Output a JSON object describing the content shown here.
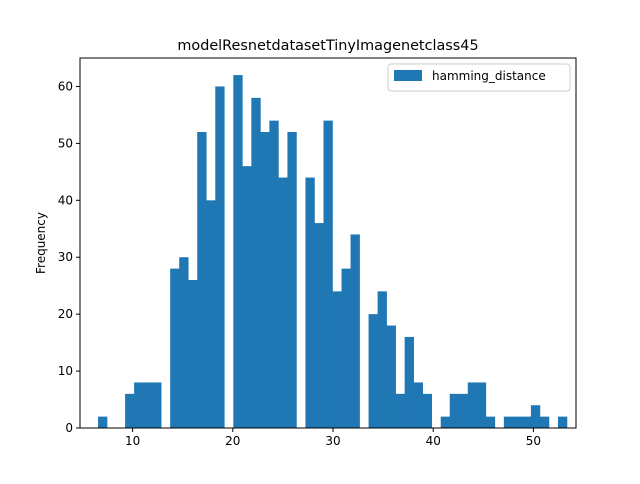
{
  "chart_data": {
    "type": "bar",
    "title": "modelResnetdatasetTinyImagenetclass45",
    "xlabel": "",
    "ylabel": "Frequency",
    "xlim": [
      4.75,
      54.25
    ],
    "ylim": [
      0,
      65
    ],
    "xticks": [
      10,
      20,
      30,
      40,
      50
    ],
    "yticks": [
      0,
      10,
      20,
      30,
      40,
      50,
      60
    ],
    "grid": false,
    "legend_position": "top-right",
    "bin_width": 0.9,
    "series": [
      {
        "name": "hamming_distance",
        "color": "#1f77b4",
        "bins": [
          {
            "x": 7.0,
            "count": 2
          },
          {
            "x": 7.9,
            "count": 0
          },
          {
            "x": 8.8,
            "count": 0
          },
          {
            "x": 9.7,
            "count": 6
          },
          {
            "x": 10.6,
            "count": 8
          },
          {
            "x": 11.5,
            "count": 8
          },
          {
            "x": 12.4,
            "count": 8
          },
          {
            "x": 13.3,
            "count": 0
          },
          {
            "x": 14.2,
            "count": 28
          },
          {
            "x": 15.1,
            "count": 30
          },
          {
            "x": 16.0,
            "count": 26
          },
          {
            "x": 16.9,
            "count": 52
          },
          {
            "x": 17.8,
            "count": 40
          },
          {
            "x": 18.7,
            "count": 60
          },
          {
            "x": 19.6,
            "count": 0
          },
          {
            "x": 20.5,
            "count": 62
          },
          {
            "x": 21.4,
            "count": 46
          },
          {
            "x": 22.3,
            "count": 58
          },
          {
            "x": 23.2,
            "count": 52
          },
          {
            "x": 24.1,
            "count": 54
          },
          {
            "x": 25.0,
            "count": 44
          },
          {
            "x": 25.9,
            "count": 52
          },
          {
            "x": 26.8,
            "count": 0
          },
          {
            "x": 27.7,
            "count": 44
          },
          {
            "x": 28.6,
            "count": 36
          },
          {
            "x": 29.5,
            "count": 54
          },
          {
            "x": 30.4,
            "count": 24
          },
          {
            "x": 31.3,
            "count": 28
          },
          {
            "x": 32.2,
            "count": 34
          },
          {
            "x": 33.1,
            "count": 0
          },
          {
            "x": 34.0,
            "count": 20
          },
          {
            "x": 34.9,
            "count": 24
          },
          {
            "x": 35.8,
            "count": 18
          },
          {
            "x": 36.7,
            "count": 6
          },
          {
            "x": 37.6,
            "count": 16
          },
          {
            "x": 38.5,
            "count": 8
          },
          {
            "x": 39.4,
            "count": 6
          },
          {
            "x": 40.3,
            "count": 0
          },
          {
            "x": 41.2,
            "count": 2
          },
          {
            "x": 42.1,
            "count": 6
          },
          {
            "x": 43.0,
            "count": 6
          },
          {
            "x": 43.9,
            "count": 8
          },
          {
            "x": 44.8,
            "count": 8
          },
          {
            "x": 45.7,
            "count": 2
          },
          {
            "x": 46.6,
            "count": 0
          },
          {
            "x": 47.5,
            "count": 2
          },
          {
            "x": 48.4,
            "count": 2
          },
          {
            "x": 49.3,
            "count": 2
          },
          {
            "x": 50.2,
            "count": 4
          },
          {
            "x": 51.1,
            "count": 2
          },
          {
            "x": 52.0,
            "count": 0
          },
          {
            "x": 52.9,
            "count": 2
          }
        ]
      }
    ]
  }
}
